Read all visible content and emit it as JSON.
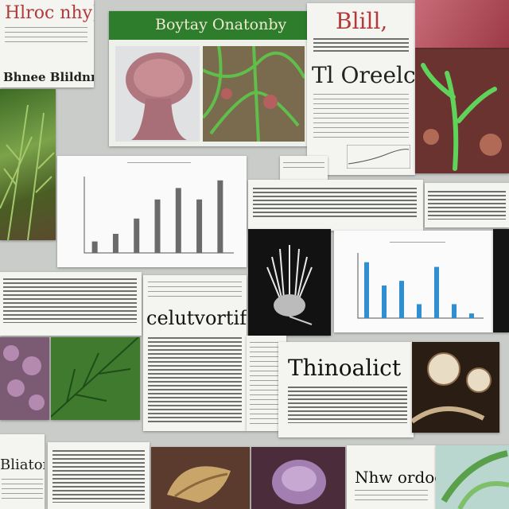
{
  "labels": {
    "t1": "Hlroc nhy)",
    "t2": "Boytay Onatonby",
    "t3": "Blill,",
    "t4": "Tl Oreelc",
    "t5": "Bhnee Blildnnee",
    "t6": "celutvortif",
    "t7": "Thinoalict",
    "t8": "Bliator",
    "t9": "Nhw ordoe"
  },
  "chart_data": [
    {
      "type": "bar",
      "categories": [
        "",
        "",
        "",
        "",
        "",
        "",
        ""
      ],
      "values": [
        3,
        5,
        9,
        14,
        17,
        14,
        19
      ],
      "ylim": [
        0,
        20
      ],
      "colors": [
        "#6b6b6b"
      ]
    },
    {
      "type": "bar",
      "categories": [
        "",
        "",
        "",
        "",
        "",
        "",
        ""
      ],
      "values": [
        12,
        7,
        8,
        3,
        11,
        3,
        1
      ],
      "ylim": [
        0,
        14
      ],
      "colors": [
        "#2f8fd0"
      ]
    }
  ],
  "colors": {
    "green_header": "#2d7d2d",
    "red_title": "#c0392b",
    "bar_blue": "#2f8fd0"
  }
}
